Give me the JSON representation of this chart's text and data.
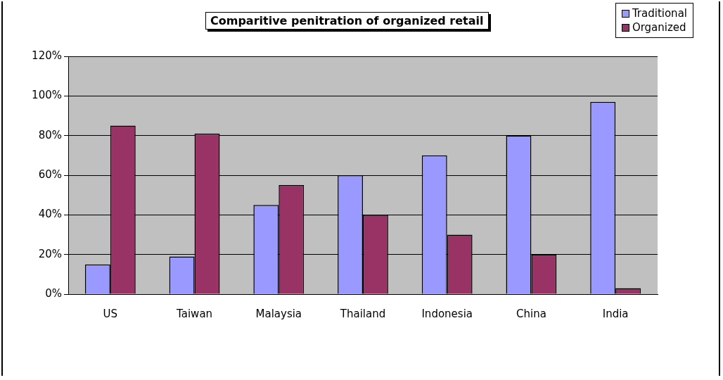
{
  "chart_data": {
    "type": "bar",
    "title": "Comparitive penitration of organized retail",
    "categories": [
      "US",
      "Taiwan",
      "Malaysia",
      "Thailand",
      "Indonesia",
      "China",
      "India"
    ],
    "series": [
      {
        "name": "Traditional",
        "color": "#9999ff",
        "values": [
          15,
          19,
          45,
          60,
          70,
          80,
          97
        ]
      },
      {
        "name": "Organized",
        "color": "#993366",
        "values": [
          85,
          81,
          55,
          40,
          30,
          20,
          3
        ]
      }
    ],
    "ylim": [
      0,
      120
    ],
    "yticks": [
      {
        "value": 0,
        "label": "0%"
      },
      {
        "value": 20,
        "label": "20%"
      },
      {
        "value": 40,
        "label": "40%"
      },
      {
        "value": 60,
        "label": "60%"
      },
      {
        "value": 80,
        "label": "80%"
      },
      {
        "value": 100,
        "label": "100%"
      },
      {
        "value": 120,
        "label": "120%"
      }
    ],
    "grid": "y",
    "legend": "top right"
  }
}
